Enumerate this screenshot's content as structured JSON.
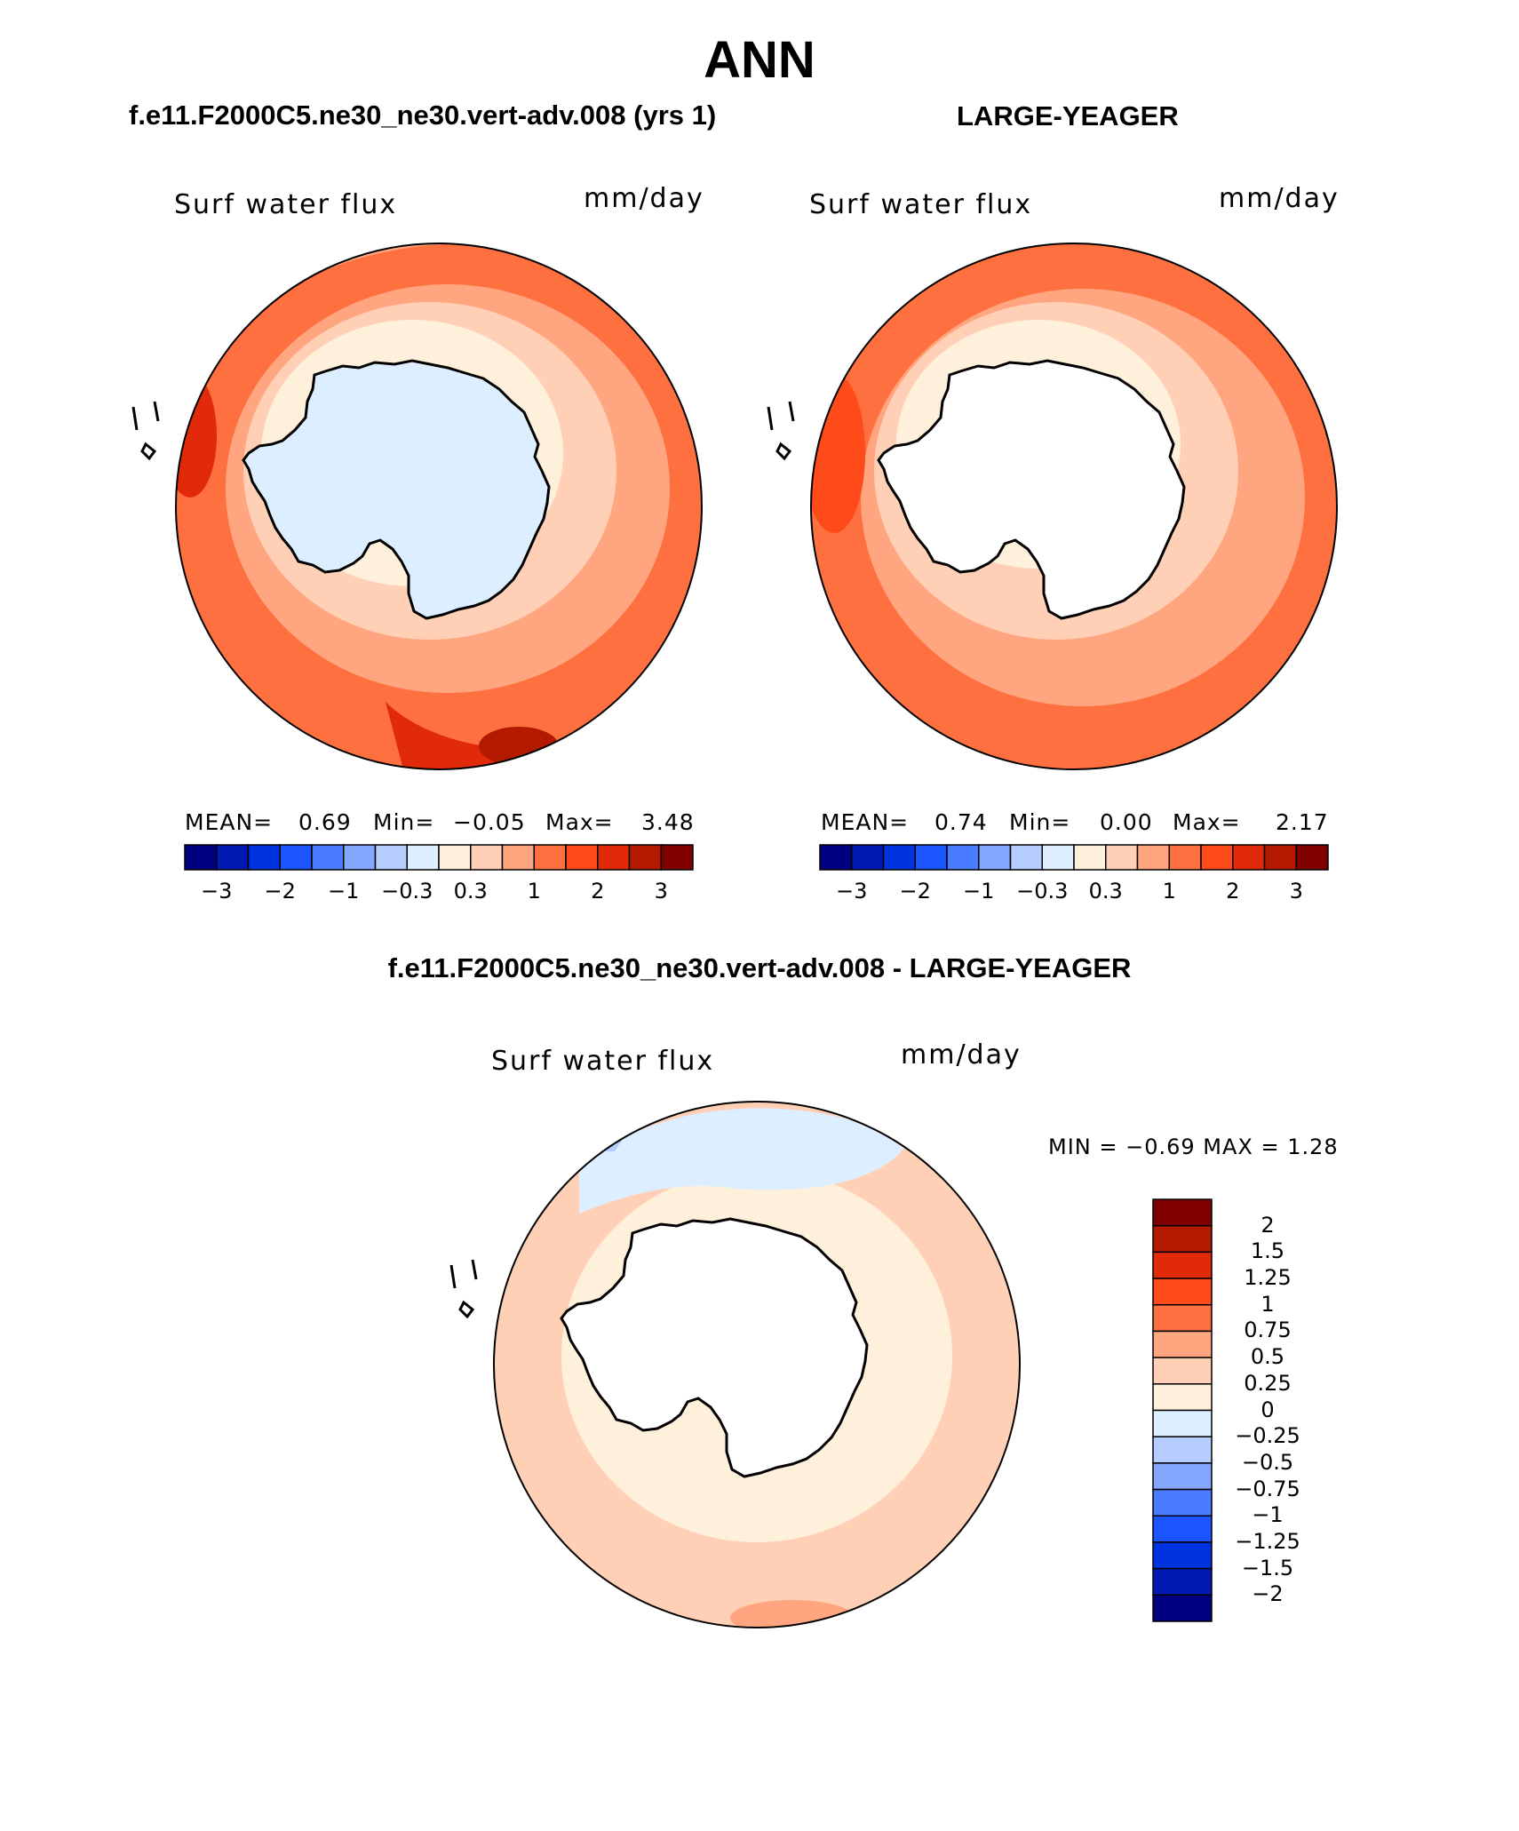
{
  "title": "ANN",
  "panels": [
    {
      "case": "f.e11.F2000C5.ne30_ne30.vert-adv.008 (yrs 1)",
      "variable": "Surf water flux",
      "units": "mm/day",
      "mean_label": "MEAN=",
      "mean": "0.69",
      "min_label": "Min=",
      "min": "−0.05",
      "max_label": "Max=",
      "max": "3.48"
    },
    {
      "case": "LARGE-YEAGER",
      "variable": "Surf water flux",
      "units": "mm/day",
      "mean_label": "MEAN=",
      "mean": "0.74",
      "min_label": "Min=",
      "min": "0.00",
      "max_label": "Max=",
      "max": "2.17"
    }
  ],
  "colorbar": {
    "colors": [
      "#000080",
      "#0019b3",
      "#0033e0",
      "#1a55ff",
      "#4a7cff",
      "#85a8ff",
      "#b5cdff",
      "#dceeff",
      "#fff0dc",
      "#ffd0b5",
      "#ffa680",
      "#ff7040",
      "#ff4a1a",
      "#e02a0a",
      "#b31a00",
      "#800000"
    ],
    "tick_labels": [
      "−3",
      "−2",
      "−1",
      "−0.3",
      "0.3",
      "1",
      "2",
      "3"
    ]
  },
  "difference": {
    "title": "f.e11.F2000C5.ne30_ne30.vert-adv.008 - LARGE-YEAGER",
    "variable": "Surf water flux",
    "units": "mm/day",
    "min_max_text": "MIN =   −0.69  MAX =    1.28",
    "colors_top_to_bottom": [
      "#800000",
      "#b31a00",
      "#e02a0a",
      "#ff4a1a",
      "#ff7040",
      "#ffa680",
      "#ffd0b5",
      "#fff0dc",
      "#dceeff",
      "#b5cdff",
      "#85a8ff",
      "#4a7cff",
      "#1a55ff",
      "#0033e0",
      "#0019b3",
      "#000080"
    ],
    "tick_labels": [
      "2",
      "1.5",
      "1.25",
      "1",
      "0.75",
      "0.5",
      "0.25",
      "0",
      "−0.25",
      "−0.5",
      "−0.75",
      "−1",
      "−1.25",
      "−1.5",
      "−2"
    ]
  }
}
